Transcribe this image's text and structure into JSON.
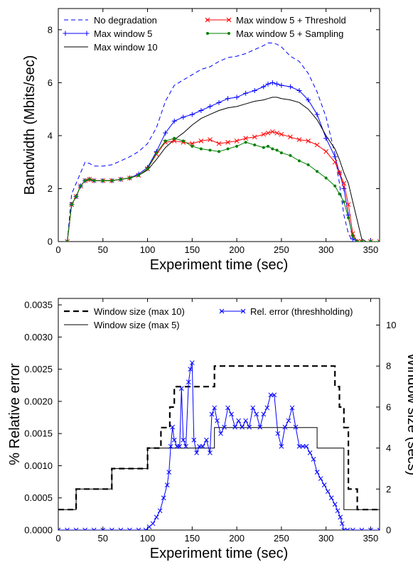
{
  "chart_data": [
    {
      "type": "line",
      "xlabel": "Experiment time (sec)",
      "ylabel": "Bandwidth (Mbits/sec)",
      "xlim": [
        0,
        360
      ],
      "ylim": [
        0,
        8.8
      ],
      "xticks": [
        0,
        50,
        100,
        150,
        200,
        250,
        300,
        350
      ],
      "yticks": [
        0,
        2,
        4,
        6,
        8
      ],
      "grid": false,
      "legend_position": "top",
      "series": [
        {
          "name": "No degradation",
          "color": "#0000ff",
          "style": "dashed",
          "marker": "none",
          "x": [
            10,
            15,
            20,
            25,
            30,
            35,
            40,
            50,
            60,
            70,
            80,
            90,
            100,
            110,
            120,
            130,
            140,
            150,
            160,
            170,
            180,
            190,
            200,
            210,
            220,
            230,
            235,
            240,
            245,
            250,
            260,
            270,
            280,
            290,
            300,
            310,
            315,
            320,
            325,
            330,
            335,
            340,
            350,
            360
          ],
          "y": [
            0,
            1.8,
            2.2,
            2.6,
            3.0,
            2.95,
            2.85,
            2.85,
            2.9,
            3.05,
            3.2,
            3.4,
            3.7,
            4.3,
            5.3,
            5.9,
            6.1,
            6.3,
            6.5,
            6.6,
            6.8,
            6.95,
            7.0,
            7.1,
            7.25,
            7.4,
            7.5,
            7.5,
            7.45,
            7.35,
            7.0,
            6.8,
            6.35,
            5.65,
            4.7,
            3.3,
            2.2,
            1.0,
            0.3,
            0,
            0,
            0,
            0,
            0
          ]
        },
        {
          "name": "Max window 5",
          "color": "#0000ff",
          "style": "solid",
          "marker": "plus",
          "x": [
            10,
            15,
            20,
            25,
            30,
            35,
            40,
            50,
            60,
            70,
            80,
            90,
            100,
            110,
            120,
            130,
            140,
            150,
            160,
            170,
            180,
            190,
            200,
            210,
            220,
            230,
            235,
            240,
            245,
            250,
            260,
            270,
            280,
            290,
            300,
            310,
            315,
            320,
            325,
            330,
            335,
            340,
            350,
            360
          ],
          "y": [
            0,
            1.4,
            1.7,
            2.1,
            2.3,
            2.35,
            2.3,
            2.3,
            2.3,
            2.35,
            2.4,
            2.55,
            2.8,
            3.4,
            4.1,
            4.55,
            4.7,
            4.8,
            4.95,
            5.1,
            5.25,
            5.4,
            5.45,
            5.6,
            5.7,
            5.85,
            5.95,
            6.0,
            5.95,
            5.9,
            5.85,
            5.7,
            5.35,
            4.8,
            3.9,
            3.2,
            2.6,
            2.0,
            1.0,
            0.1,
            0,
            0,
            0,
            0
          ]
        },
        {
          "name": "Max window 10",
          "color": "#000000",
          "style": "solid",
          "marker": "none",
          "x": [
            10,
            15,
            20,
            25,
            30,
            35,
            40,
            50,
            60,
            70,
            80,
            90,
            100,
            110,
            120,
            130,
            140,
            150,
            160,
            170,
            180,
            190,
            200,
            210,
            220,
            230,
            235,
            240,
            245,
            250,
            260,
            270,
            280,
            290,
            300,
            310,
            315,
            320,
            325,
            330,
            335,
            340,
            345,
            350,
            360
          ],
          "y": [
            0,
            1.4,
            1.7,
            2.1,
            2.3,
            2.35,
            2.3,
            2.3,
            2.3,
            2.35,
            2.4,
            2.5,
            2.7,
            3.1,
            3.55,
            3.85,
            4.1,
            4.4,
            4.65,
            4.8,
            4.95,
            5.05,
            5.1,
            5.2,
            5.3,
            5.35,
            5.4,
            5.45,
            5.45,
            5.4,
            5.35,
            5.25,
            5.0,
            4.6,
            4.0,
            3.5,
            3.1,
            2.6,
            2.2,
            1.5,
            0.8,
            0.1,
            0,
            0,
            0
          ]
        },
        {
          "name": "Max window 5 + Threshold",
          "color": "#ff0000",
          "style": "solid",
          "marker": "x",
          "x": [
            10,
            15,
            20,
            25,
            30,
            35,
            40,
            50,
            60,
            70,
            80,
            90,
            100,
            110,
            120,
            130,
            140,
            150,
            160,
            170,
            180,
            190,
            200,
            210,
            220,
            230,
            235,
            240,
            245,
            250,
            260,
            270,
            280,
            290,
            300,
            310,
            315,
            320,
            325,
            330,
            335,
            340,
            350,
            360
          ],
          "y": [
            0,
            1.4,
            1.7,
            2.1,
            2.3,
            2.35,
            2.3,
            2.3,
            2.3,
            2.35,
            2.4,
            2.5,
            2.75,
            3.3,
            3.75,
            3.8,
            3.75,
            3.7,
            3.8,
            3.85,
            3.7,
            3.75,
            3.8,
            3.9,
            3.95,
            4.05,
            4.1,
            4.15,
            4.1,
            4.05,
            3.95,
            3.85,
            3.8,
            3.65,
            3.4,
            3.0,
            2.6,
            2.2,
            1.4,
            0.3,
            0,
            0,
            0,
            0
          ]
        },
        {
          "name": "Max window 5 + Sampling",
          "color": "#008000",
          "style": "solid",
          "marker": "dot",
          "x": [
            10,
            15,
            20,
            25,
            30,
            35,
            40,
            50,
            60,
            70,
            80,
            90,
            100,
            110,
            120,
            130,
            140,
            150,
            160,
            170,
            180,
            190,
            200,
            210,
            220,
            230,
            235,
            240,
            245,
            250,
            260,
            270,
            280,
            290,
            300,
            310,
            315,
            320,
            325,
            330,
            335,
            340,
            350,
            360
          ],
          "y": [
            0,
            1.4,
            1.7,
            2.1,
            2.3,
            2.35,
            2.3,
            2.3,
            2.3,
            2.35,
            2.4,
            2.5,
            2.75,
            3.35,
            3.8,
            3.9,
            3.8,
            3.6,
            3.5,
            3.45,
            3.4,
            3.5,
            3.6,
            3.75,
            3.65,
            3.55,
            3.6,
            3.5,
            3.45,
            3.35,
            3.25,
            3.05,
            2.9,
            2.65,
            2.4,
            2.1,
            1.8,
            1.5,
            0.9,
            0.2,
            0,
            0,
            0,
            0
          ]
        }
      ]
    },
    {
      "type": "line",
      "xlabel": "Experiment time (sec)",
      "ylabel": "% Relative error",
      "y2label": "Window size (secs)",
      "xlim": [
        0,
        360
      ],
      "ylim": [
        0,
        0.0036
      ],
      "y2lim": [
        0,
        11.3
      ],
      "xticks": [
        0,
        50,
        100,
        150,
        200,
        250,
        300,
        350
      ],
      "yticks": [
        0.0,
        0.0005,
        0.001,
        0.0015,
        0.002,
        0.0025,
        0.003,
        0.0035
      ],
      "yticklabels": [
        "0.0000",
        "0.0005",
        "0.0010",
        "0.0015",
        "0.0020",
        "0.0025",
        "0.0030",
        "0.0035"
      ],
      "y2ticks": [
        0,
        2,
        4,
        6,
        8,
        10
      ],
      "grid": false,
      "legend_position": "top",
      "series": [
        {
          "name": "Window size (max 10)",
          "axis": "right",
          "color": "#000000",
          "style": "dashed",
          "stroke": "thick",
          "marker": "none",
          "x": [
            0,
            20,
            20,
            60,
            60,
            100,
            100,
            115,
            115,
            125,
            125,
            130,
            130,
            140,
            140,
            175,
            175,
            310,
            310,
            315,
            315,
            320,
            320,
            325,
            325,
            335,
            335,
            360
          ],
          "y": [
            1,
            1,
            2,
            2,
            3,
            3,
            4,
            4,
            5,
            5,
            6,
            6,
            7,
            7,
            7,
            7,
            8,
            8,
            7,
            7,
            6,
            6,
            5,
            5,
            2,
            2,
            1,
            1
          ]
        },
        {
          "name": "Window size (max 5)",
          "axis": "right",
          "color": "#000000",
          "style": "solid",
          "stroke": "thin",
          "marker": "none",
          "x": [
            0,
            20,
            20,
            60,
            60,
            100,
            100,
            175,
            175,
            290,
            290,
            320,
            320,
            360
          ],
          "y": [
            1,
            1,
            2,
            2,
            3,
            3,
            4,
            4,
            5,
            5,
            4,
            4,
            1,
            1
          ]
        },
        {
          "name": "Rel. error (threshholding)",
          "axis": "left",
          "color": "#0000ff",
          "style": "solid",
          "marker": "x",
          "x": [
            0,
            10,
            20,
            30,
            40,
            50,
            60,
            70,
            80,
            90,
            98,
            102,
            106,
            110,
            114,
            118,
            122,
            124,
            126,
            128,
            130,
            133,
            136,
            138,
            140,
            143,
            146,
            148,
            150,
            152,
            155,
            158,
            162,
            166,
            170,
            172,
            175,
            178,
            182,
            186,
            190,
            194,
            198,
            202,
            206,
            210,
            214,
            218,
            222,
            226,
            230,
            234,
            238,
            242,
            246,
            250,
            254,
            258,
            262,
            266,
            270,
            274,
            278,
            282,
            286,
            290,
            294,
            298,
            302,
            306,
            310,
            313,
            316,
            318,
            320,
            324,
            330,
            340,
            350,
            360
          ],
          "y": [
            0,
            0,
            0,
            0,
            0,
            0,
            0,
            0,
            0,
            0,
            0,
            5e-05,
            0.0001,
            0.0002,
            0.0003,
            0.0005,
            0.0007,
            0.0009,
            0.0013,
            0.0016,
            0.0014,
            0.0013,
            0.0013,
            0.0022,
            0.0014,
            0.0013,
            0.0023,
            0.0025,
            0.0026,
            0.0014,
            0.0012,
            0.0013,
            0.0013,
            0.0014,
            0.0012,
            0.0018,
            0.0019,
            0.0017,
            0.0015,
            0.0016,
            0.0019,
            0.0018,
            0.0016,
            0.0017,
            0.0016,
            0.0017,
            0.0016,
            0.0019,
            0.0018,
            0.0016,
            0.0018,
            0.0019,
            0.0021,
            0.0021,
            0.0015,
            0.0013,
            0.0016,
            0.0017,
            0.0019,
            0.0016,
            0.0013,
            0.0013,
            0.0013,
            0.0012,
            0.0011,
            0.0009,
            0.0008,
            0.0007,
            0.0006,
            0.0005,
            0.0004,
            0.0003,
            0.0002,
            0.0001,
            0,
            0,
            0,
            0,
            0,
            0
          ]
        }
      ]
    }
  ]
}
